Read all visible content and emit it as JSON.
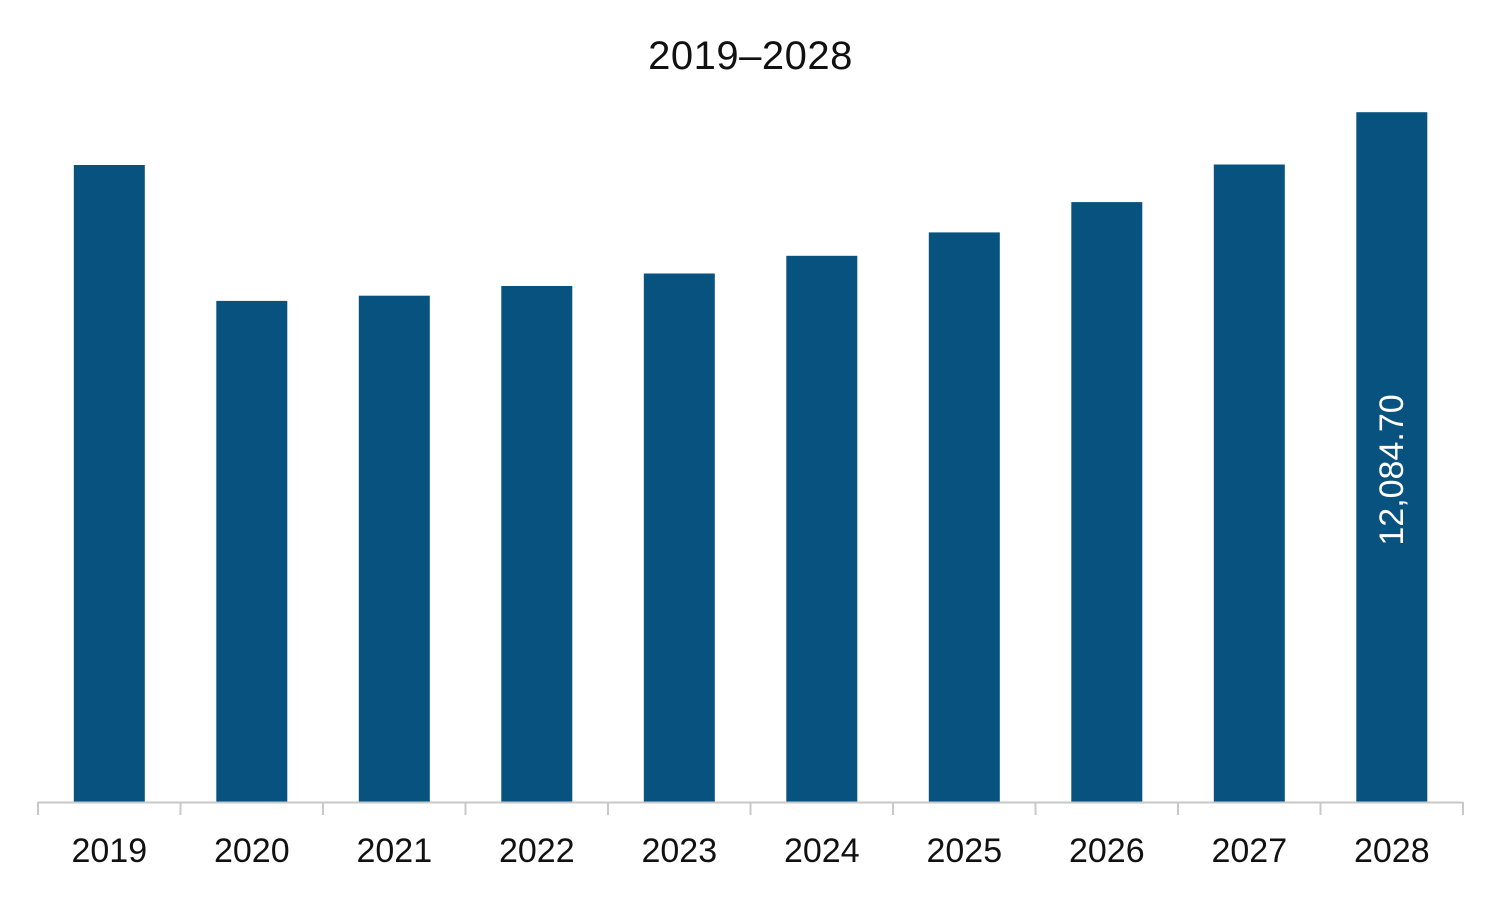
{
  "chart_data": {
    "type": "bar",
    "title": "2019–2028",
    "xlabel": "",
    "ylabel": "",
    "categories": [
      "2019",
      "2020",
      "2021",
      "2022",
      "2023",
      "2024",
      "2025",
      "2026",
      "2027",
      "2028"
    ],
    "values": [
      11160,
      8780,
      8870,
      9040,
      9260,
      9570,
      9980,
      10510,
      11170,
      12084.7
    ],
    "data_labels": [
      {
        "category": "2028",
        "text": "12,084.70"
      }
    ],
    "ylim": [
      0,
      13000
    ],
    "grid": false,
    "legend": "none",
    "bar_color": "#08527f",
    "axis_color": "#c8c8c8"
  }
}
